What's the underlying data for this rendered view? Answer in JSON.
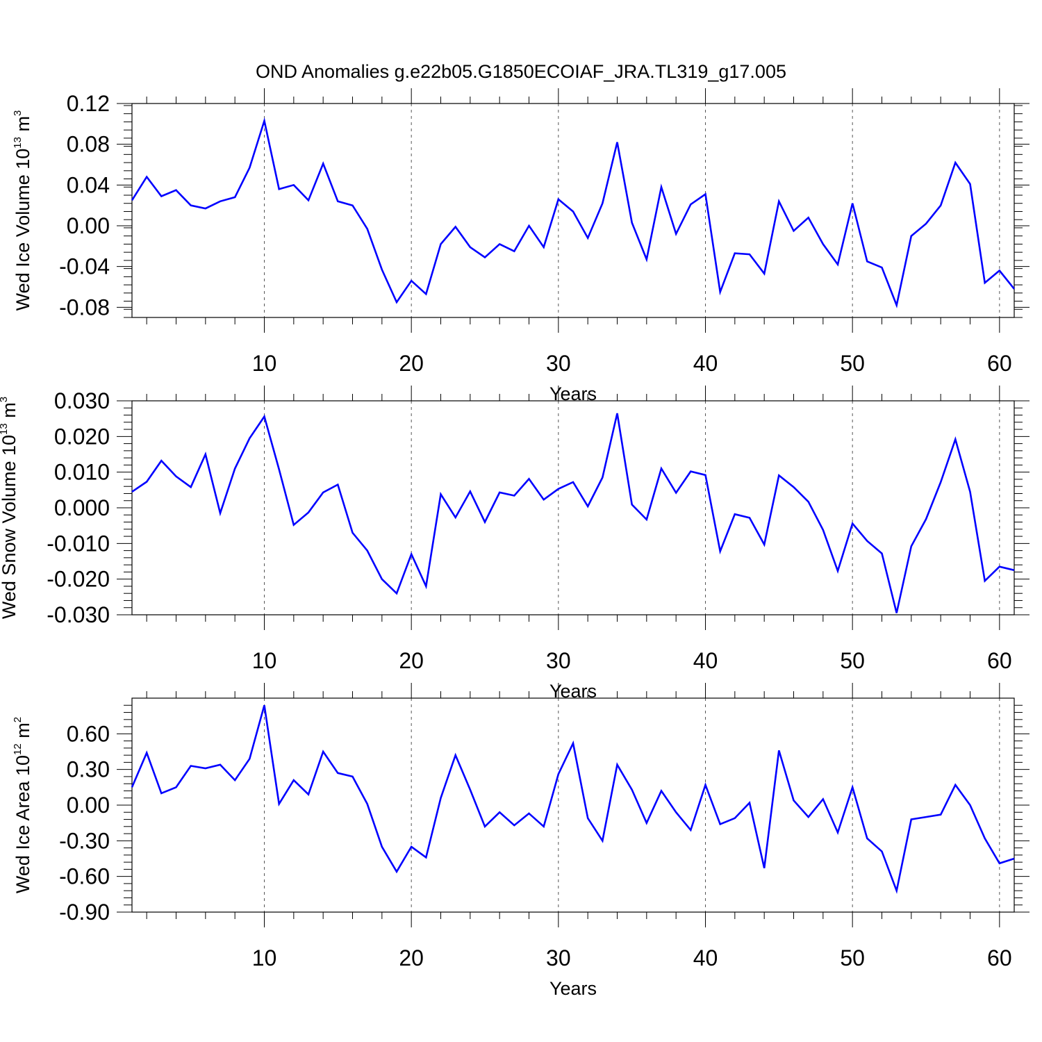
{
  "title": "OND Anomalies g.e22b05.G1850ECOIAF_JRA.TL319_g17.005",
  "colors": {
    "line": "#0000ff",
    "axis": "#000000",
    "grid": "#555555"
  },
  "chart_data": [
    {
      "type": "line",
      "xlabel": "Years",
      "ylabel": {
        "prefix": "Wed Ice Volume 10",
        "exp": "13",
        "unit": " m",
        "unit_exp": "3"
      },
      "xlim": [
        1,
        61
      ],
      "ylim": [
        -0.09,
        0.12
      ],
      "x_ticks": [
        "10",
        "20",
        "30",
        "40",
        "50",
        "60"
      ],
      "y_ticks": [
        "-0.08",
        "-0.04",
        "0.00",
        "0.04",
        "0.08",
        "0.12"
      ],
      "grid": "dashed vertical lines at major x ticks",
      "series": [
        {
          "x": [
            1,
            2,
            3,
            4,
            5,
            6,
            7,
            8,
            9,
            10,
            11,
            12,
            13,
            14,
            15,
            16,
            17,
            18,
            19,
            20,
            21,
            22,
            23,
            24,
            25,
            26,
            27,
            28,
            29,
            30,
            31,
            32,
            33,
            34,
            35,
            36,
            37,
            38,
            39,
            40,
            41,
            42,
            43,
            44,
            45,
            46,
            47,
            48,
            49,
            50,
            51,
            52,
            53,
            54,
            55,
            56,
            57,
            58,
            59,
            60,
            61
          ],
          "values": [
            0.025,
            0.048,
            0.029,
            0.035,
            0.02,
            0.017,
            0.024,
            0.028,
            0.057,
            0.103,
            0.036,
            0.04,
            0.025,
            0.061,
            0.024,
            0.02,
            -0.003,
            -0.043,
            -0.075,
            -0.054,
            -0.067,
            -0.018,
            -0.001,
            -0.021,
            -0.031,
            -0.018,
            -0.025,
            0.0,
            -0.021,
            0.026,
            0.014,
            -0.012,
            0.022,
            0.082,
            0.003,
            -0.033,
            0.038,
            -0.008,
            0.021,
            0.031,
            -0.065,
            -0.027,
            -0.028,
            -0.047,
            0.024,
            -0.005,
            0.008,
            -0.018,
            -0.038,
            0.022,
            -0.035,
            -0.041,
            -0.078,
            -0.01,
            0.002,
            0.02,
            0.062,
            0.041,
            -0.056,
            -0.044,
            -0.062
          ]
        }
      ]
    },
    {
      "type": "line",
      "xlabel": "Years",
      "ylabel": {
        "prefix": "Wed Snow Volume 10",
        "exp": "13",
        "unit": " m",
        "unit_exp": "3"
      },
      "xlim": [
        1,
        61
      ],
      "ylim": [
        -0.03,
        0.03
      ],
      "x_ticks": [
        "10",
        "20",
        "30",
        "40",
        "50",
        "60"
      ],
      "y_ticks": [
        "-0.030",
        "-0.020",
        "-0.010",
        "0.000",
        "0.010",
        "0.020",
        "0.030"
      ],
      "grid": "dashed vertical lines at major x ticks",
      "series": [
        {
          "x": [
            1,
            2,
            3,
            4,
            5,
            6,
            7,
            8,
            9,
            10,
            11,
            12,
            13,
            14,
            15,
            16,
            17,
            18,
            19,
            20,
            21,
            22,
            23,
            24,
            25,
            26,
            27,
            28,
            29,
            30,
            31,
            32,
            33,
            34,
            35,
            36,
            37,
            38,
            39,
            40,
            41,
            42,
            43,
            44,
            45,
            46,
            47,
            48,
            49,
            50,
            51,
            52,
            53,
            54,
            55,
            56,
            57,
            58,
            59,
            60,
            61
          ],
          "values": [
            0.0045,
            0.0073,
            0.0132,
            0.0088,
            0.0058,
            0.015,
            -0.0015,
            0.011,
            0.0195,
            0.0256,
            0.0108,
            -0.0048,
            -0.0013,
            0.0043,
            0.0065,
            -0.007,
            -0.012,
            -0.02,
            -0.024,
            -0.013,
            -0.022,
            0.0038,
            -0.0027,
            0.0046,
            -0.004,
            0.0043,
            0.0034,
            0.0081,
            0.0023,
            0.0053,
            0.0072,
            0.0004,
            0.0085,
            0.0265,
            0.0009,
            -0.0033,
            0.011,
            0.0042,
            0.0102,
            0.0092,
            -0.0122,
            -0.0018,
            -0.0028,
            -0.0103,
            0.0091,
            0.0058,
            0.0017,
            -0.0062,
            -0.0177,
            -0.0044,
            -0.0093,
            -0.0128,
            -0.0295,
            -0.0108,
            -0.0032,
            0.0072,
            0.0192,
            0.0045,
            -0.0205,
            -0.0165,
            -0.0175
          ]
        }
      ]
    },
    {
      "type": "line",
      "xlabel": "Years",
      "ylabel": {
        "prefix": "Wed Ice Area 10",
        "exp": "12",
        "unit": " m",
        "unit_exp": "2"
      },
      "xlim": [
        1,
        61
      ],
      "ylim": [
        -0.9,
        0.9
      ],
      "x_ticks": [
        "10",
        "20",
        "30",
        "40",
        "50",
        "60"
      ],
      "y_ticks": [
        "-0.90",
        "-0.60",
        "-0.30",
        "0.00",
        "0.30",
        "0.60"
      ],
      "grid": "dashed vertical lines at major x ticks",
      "series": [
        {
          "x": [
            1,
            2,
            3,
            4,
            5,
            6,
            7,
            8,
            9,
            10,
            11,
            12,
            13,
            14,
            15,
            16,
            17,
            18,
            19,
            20,
            21,
            22,
            23,
            24,
            25,
            26,
            27,
            28,
            29,
            30,
            31,
            32,
            33,
            34,
            35,
            36,
            37,
            38,
            39,
            40,
            41,
            42,
            43,
            44,
            45,
            46,
            47,
            48,
            49,
            50,
            51,
            52,
            53,
            54,
            55,
            56,
            57,
            58,
            59,
            60,
            61
          ],
          "values": [
            0.15,
            0.44,
            0.1,
            0.15,
            0.33,
            0.31,
            0.34,
            0.21,
            0.39,
            0.84,
            0.01,
            0.21,
            0.09,
            0.45,
            0.27,
            0.24,
            0.01,
            -0.35,
            -0.56,
            -0.35,
            -0.44,
            0.06,
            0.42,
            0.13,
            -0.18,
            -0.06,
            -0.17,
            -0.07,
            -0.18,
            0.26,
            0.52,
            -0.11,
            -0.3,
            0.34,
            0.13,
            -0.15,
            0.12,
            -0.06,
            -0.21,
            0.17,
            -0.16,
            -0.11,
            0.02,
            -0.53,
            0.46,
            0.04,
            -0.1,
            0.05,
            -0.23,
            0.15,
            -0.28,
            -0.39,
            -0.72,
            -0.12,
            -0.1,
            -0.08,
            0.17,
            0.0,
            -0.28,
            -0.49,
            -0.45
          ]
        }
      ]
    }
  ]
}
